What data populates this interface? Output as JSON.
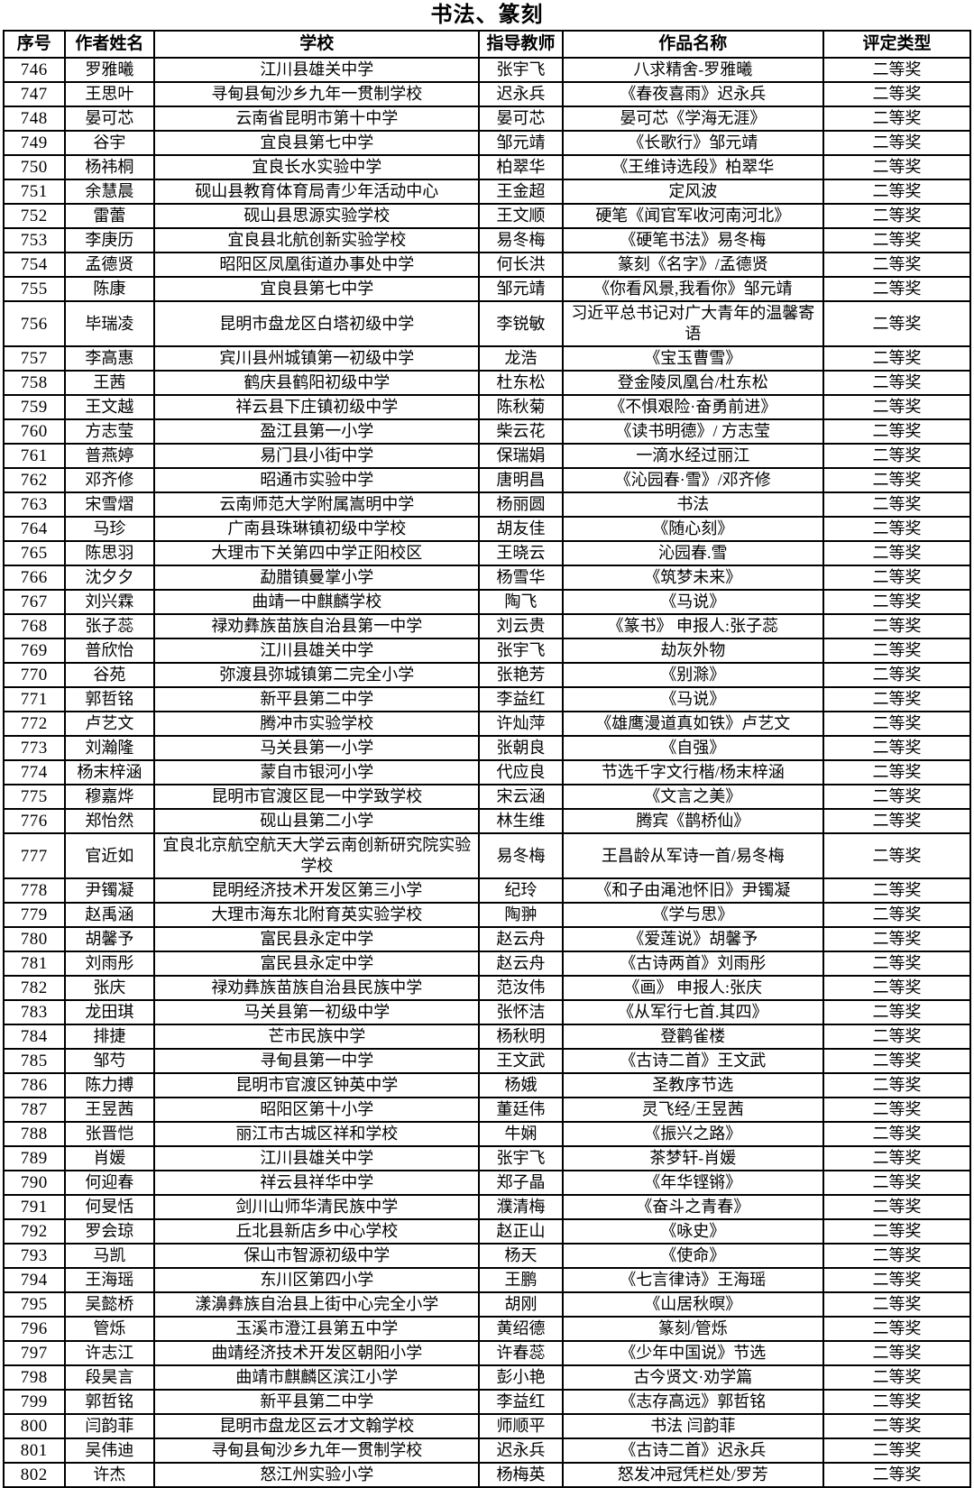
{
  "title": "书法、篆刻",
  "table": {
    "headers": [
      "序号",
      "作者姓名",
      "学校",
      "指导教师",
      "作品名称",
      "评定类型"
    ],
    "rows": [
      [
        "746",
        "罗雅曦",
        "江川县雄关中学",
        "张宇飞",
        "八求精舍-罗雅曦",
        "二等奖"
      ],
      [
        "747",
        "王思叶",
        "寻甸县甸沙乡九年一贯制学校",
        "迟永兵",
        "《春夜喜雨》迟永兵",
        "二等奖"
      ],
      [
        "748",
        "晏可芯",
        "云南省昆明市第十中学",
        "晏可芯",
        "晏可芯《学海无涯》",
        "二等奖"
      ],
      [
        "749",
        "谷宇",
        "宜良县第七中学",
        "邹元靖",
        "《长歌行》邹元靖",
        "二等奖"
      ],
      [
        "750",
        "杨祎桐",
        "宜良长水实验中学",
        "柏翠华",
        "《王维诗选段》柏翠华",
        "二等奖"
      ],
      [
        "751",
        "余慧晨",
        "砚山县教育体育局青少年活动中心",
        "王金超",
        "定风波",
        "二等奖"
      ],
      [
        "752",
        "雷蕾",
        "砚山县思源实验学校",
        "王文顺",
        "硬笔《闻官军收河南河北》",
        "二等奖"
      ],
      [
        "753",
        "李庚历",
        "宜良县北航创新实验学校",
        "易冬梅",
        "《硬笔书法》易冬梅",
        "二等奖"
      ],
      [
        "754",
        "孟德贤",
        "昭阳区凤凰街道办事处中学",
        "何长洪",
        "篆刻《名字》/孟德贤",
        "二等奖"
      ],
      [
        "755",
        "陈康",
        "宜良县第七中学",
        "邹元靖",
        "《你看风景,我看你》邹元靖",
        "二等奖"
      ],
      [
        "756",
        "毕瑞凌",
        "昆明市盘龙区白塔初级中学",
        "李锐敏",
        "习近平总书记对广大青年的温馨寄语",
        "二等奖"
      ],
      [
        "757",
        "李高惠",
        "宾川县州城镇第一初级中学",
        "龙浩",
        "《宝玉曹雪》",
        "二等奖"
      ],
      [
        "758",
        "王茜",
        "鹤庆县鹤阳初级中学",
        "杜东松",
        "登金陵凤凰台/杜东松",
        "二等奖"
      ],
      [
        "759",
        "王文越",
        "祥云县下庄镇初级中学",
        "陈秋菊",
        "《不惧艰险·奋勇前进》",
        "二等奖"
      ],
      [
        "760",
        "方志莹",
        "盈江县第一小学",
        "柴云花",
        "《读书明德》/ 方志莹",
        "二等奖"
      ],
      [
        "761",
        "普燕婷",
        "易门县小街中学",
        "保瑞娟",
        "一滴水经过丽江",
        "二等奖"
      ],
      [
        "762",
        "邓齐修",
        "昭通市实验中学",
        "唐明昌",
        "《沁园春·雪》/邓齐修",
        "二等奖"
      ],
      [
        "763",
        "宋雪熠",
        "云南师范大学附属嵩明中学",
        "杨丽圆",
        "书法",
        "二等奖"
      ],
      [
        "764",
        "马珍",
        "广南县珠琳镇初级中学校",
        "胡友佳",
        "《随心刻》",
        "二等奖"
      ],
      [
        "765",
        "陈思羽",
        "大理市下关第四中学正阳校区",
        "王晓云",
        "沁园春.雪",
        "二等奖"
      ],
      [
        "766",
        "沈夕夕",
        "勐腊镇曼掌小学",
        "杨雪华",
        "《筑梦未来》",
        "二等奖"
      ],
      [
        "767",
        "刘兴霖",
        "曲靖一中麒麟学校",
        "陶飞",
        "《马说》",
        "二等奖"
      ],
      [
        "768",
        "张子蕊",
        "禄劝彝族苗族自治县第一中学",
        "刘云贵",
        "《篆书》 申报人:张子蕊",
        "二等奖"
      ],
      [
        "769",
        "普欣怡",
        "江川县雄关中学",
        "张宇飞",
        "劫灰外物",
        "二等奖"
      ],
      [
        "770",
        "谷苑",
        "弥渡县弥城镇第二完全小学",
        "张艳芳",
        "《别滁》",
        "二等奖"
      ],
      [
        "771",
        "郭哲铭",
        "新平县第二中学",
        "李益红",
        "《马说》",
        "二等奖"
      ],
      [
        "772",
        "卢艺文",
        "腾冲市实验学校",
        "许灿萍",
        "《雄鹰漫道真如铁》卢艺文",
        "二等奖"
      ],
      [
        "773",
        "刘瀚隆",
        "马关县第一小学",
        "张朝良",
        "《自强》",
        "二等奖"
      ],
      [
        "774",
        "杨末梓涵",
        "蒙自市银河小学",
        "代应良",
        "节选千字文行楷/杨末梓涵",
        "二等奖"
      ],
      [
        "775",
        "穆嘉烨",
        "昆明市官渡区昆一中学致学校",
        "宋云涵",
        "《文言之美》",
        "二等奖"
      ],
      [
        "776",
        "郑怡然",
        "砚山县第二小学",
        "林生维",
        "腾宾《鹊桥仙》",
        "二等奖"
      ],
      [
        "777",
        "官近如",
        "宜良北京航空航天大学云南创新研究院实验学校",
        "易冬梅",
        "王昌龄从军诗一首/易冬梅",
        "二等奖"
      ],
      [
        "778",
        "尹镯凝",
        "昆明经济技术开发区第三小学",
        "纪玲",
        "《和子由渑池怀旧》尹镯凝",
        "二等奖"
      ],
      [
        "779",
        "赵禹涵",
        "大理市海东北附育英实验学校",
        "陶翀",
        "《学与思》",
        "二等奖"
      ],
      [
        "780",
        "胡馨予",
        "富民县永定中学",
        "赵云舟",
        "《爱莲说》胡馨予",
        "二等奖"
      ],
      [
        "781",
        "刘雨彤",
        "富民县永定中学",
        "赵云舟",
        "《古诗两首》刘雨彤",
        "二等奖"
      ],
      [
        "782",
        "张庆",
        "禄劝彝族苗族自治县民族中学",
        "范汝伟",
        "《画》 申报人:张庆",
        "二等奖"
      ],
      [
        "783",
        "龙田琪",
        "马关县第一初级中学",
        "张怀洁",
        "《从军行七首.其四》",
        "二等奖"
      ],
      [
        "784",
        "排捷",
        "芒市民族中学",
        "杨秋明",
        "登鹳雀楼",
        "二等奖"
      ],
      [
        "785",
        "邹芍",
        "寻甸县第一中学",
        "王文武",
        "《古诗二首》王文武",
        "二等奖"
      ],
      [
        "786",
        "陈力搏",
        "昆明市官渡区钟英中学",
        "杨娥",
        "圣教序节选",
        "二等奖"
      ],
      [
        "787",
        "王昱茜",
        "昭阳区第十小学",
        "董廷伟",
        "灵飞经/王昱茜",
        "二等奖"
      ],
      [
        "788",
        "张晋恺",
        "丽江市古城区祥和学校",
        "牛娴",
        "《振兴之路》",
        "二等奖"
      ],
      [
        "789",
        "肖媛",
        "江川县雄关中学",
        "张宇飞",
        "茶梦轩-肖媛",
        "二等奖"
      ],
      [
        "790",
        "何迎春",
        "祥云县祥华中学",
        "郑子晶",
        "《年华铿锵》",
        "二等奖"
      ],
      [
        "791",
        "何旻恬",
        "剑川山师华清民族中学",
        "濮清梅",
        "《奋斗之青春》",
        "二等奖"
      ],
      [
        "792",
        "罗会琼",
        "丘北县新店乡中心学校",
        "赵正山",
        "《咏史》",
        "二等奖"
      ],
      [
        "793",
        "马凯",
        "保山市智源初级中学",
        "杨天",
        "《使命》",
        "二等奖"
      ],
      [
        "794",
        "王海瑶",
        "东川区第四小学",
        "王鹏",
        "《七言律诗》王海瑶",
        "二等奖"
      ],
      [
        "795",
        "吴懿桥",
        "漾濞彝族自治县上街中心完全小学",
        "胡刚",
        "《山居秋暝》",
        "二等奖"
      ],
      [
        "796",
        "管烁",
        "玉溪市澄江县第五中学",
        "黄绍德",
        "篆刻/管烁",
        "二等奖"
      ],
      [
        "797",
        "许志江",
        "曲靖经济技术开发区朝阳小学",
        "许春蕊",
        "《少年中国说》节选",
        "二等奖"
      ],
      [
        "798",
        "段昊言",
        "曲靖市麒麟区滨江小学",
        "彭小艳",
        "古今贤文·劝学篇",
        "二等奖"
      ],
      [
        "799",
        "郭哲铭",
        "新平县第二中学",
        "李益红",
        "《志存高远》郭哲铭",
        "二等奖"
      ],
      [
        "800",
        "闫韵菲",
        "昆明市盘龙区云才文翰学校",
        "师顺平",
        "书法 闫韵菲",
        "二等奖"
      ],
      [
        "801",
        "吴伟迪",
        "寻甸县甸沙乡九年一贯制学校",
        "迟永兵",
        "《古诗二首》迟永兵",
        "二等奖"
      ],
      [
        "802",
        "许杰",
        "怒江州实验小学",
        "杨梅英",
        "怒发冲冠凭栏处/罗芳",
        "二等奖"
      ]
    ]
  }
}
